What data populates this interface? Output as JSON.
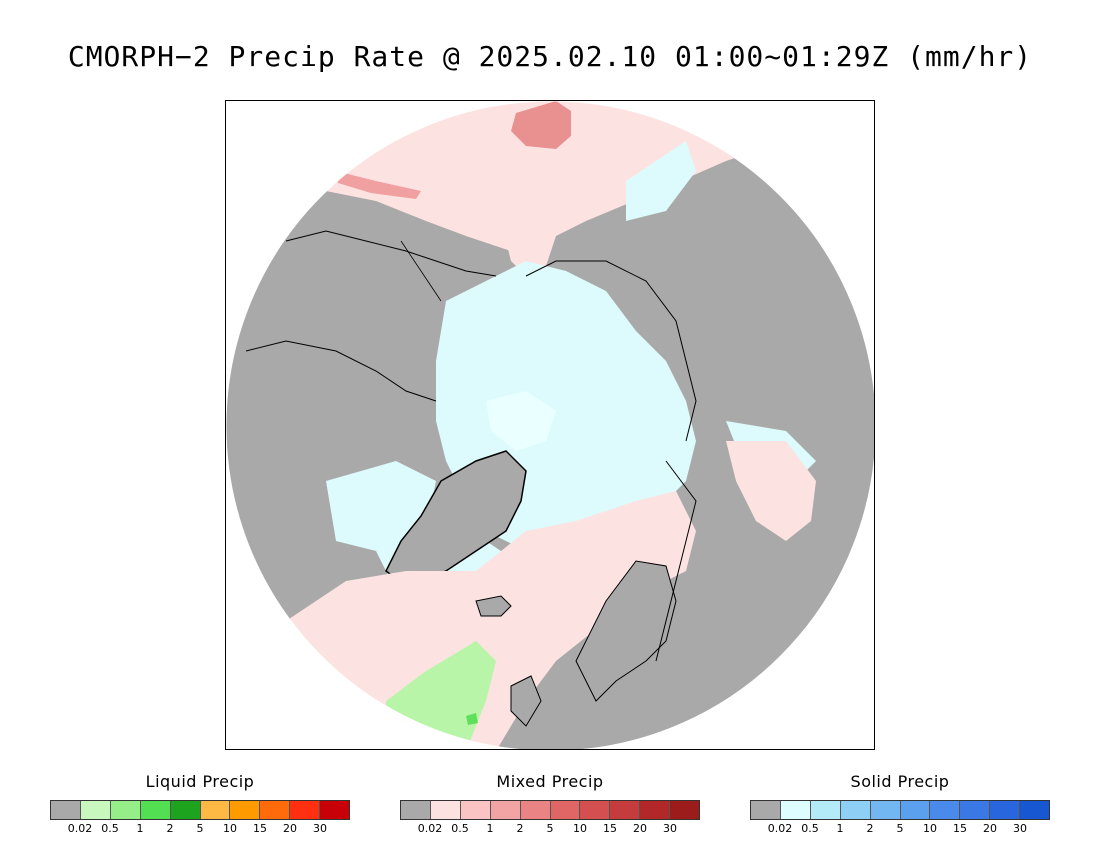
{
  "title": "CMORPH−2 Precip Rate @ 2025.02.10 01:00~01:29Z (mm/hr)",
  "map": {
    "projection": "north polar stereographic",
    "colors": {
      "ocean_background": "#ffffff",
      "no_precip_land": "#a9a9a9",
      "mixed_light": "#fde2e2",
      "mixed_moderate": "#f2a7a7",
      "mixed_heavy": "#d95656",
      "solid_light": "#ddfbfc",
      "liquid_light": "#b9f5a8",
      "liquid_moderate": "#5fe05a",
      "coastline": "#000000"
    }
  },
  "legends": [
    {
      "title": "Liquid Precip",
      "colors": [
        "#a9a9a9",
        "#c8f8bd",
        "#96ee88",
        "#52e052",
        "#1da31d",
        "#fdb943",
        "#ff9b00",
        "#ff6a0a",
        "#ff3010",
        "#c80008"
      ],
      "ticks": [
        "0.02",
        "0.5",
        "1",
        "2",
        "5",
        "10",
        "15",
        "20",
        "30"
      ]
    },
    {
      "title": "Mixed Precip",
      "colors": [
        "#a9a9a9",
        "#fde2e2",
        "#fbc4c4",
        "#f2a3a3",
        "#ea8484",
        "#e06666",
        "#d44f4f",
        "#c63b3b",
        "#b22727",
        "#9c1c1c"
      ],
      "ticks": [
        "0.02",
        "0.5",
        "1",
        "2",
        "5",
        "10",
        "15",
        "20",
        "30"
      ]
    },
    {
      "title": "Solid Precip",
      "colors": [
        "#a9a9a9",
        "#ddfdfe",
        "#b3ecf8",
        "#8ed0f5",
        "#72b7f2",
        "#5aa0ef",
        "#4a8aea",
        "#3a78e6",
        "#2866de",
        "#1758d2"
      ],
      "ticks": [
        "0.02",
        "0.5",
        "1",
        "2",
        "5",
        "10",
        "15",
        "20",
        "30"
      ]
    }
  ]
}
